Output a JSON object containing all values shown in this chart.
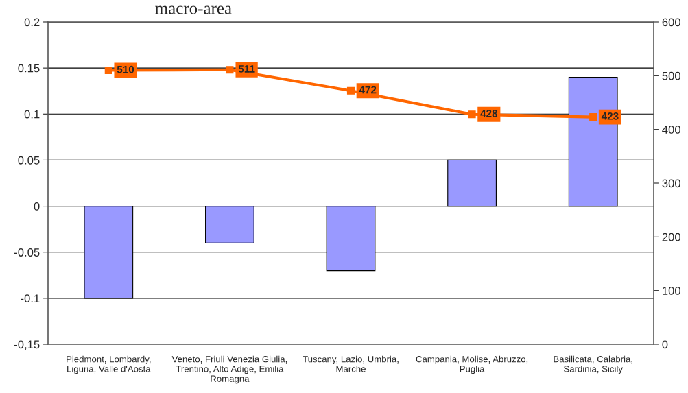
{
  "chart_data": {
    "type": "bar",
    "title": "macro-area",
    "categories": [
      "Piedmont, Lombardy,\nLiguria, Valle d'Aosta",
      "Veneto, Friuli Venezia Giulia,\nTrentino, Alto Adige, Emilia\nRomagna",
      "Tuscany, Lazio, Umbria,\nMarche",
      "Campania, Molise, Abruzzo,\nPuglia",
      "Basilicata, Calabria,\nSardinia, Sicily"
    ],
    "series": [
      {
        "color": "#9999ff",
        "values": [
          -0.1,
          -0.04,
          -0.07,
          0.05,
          0.14
        ]
      },
      {
        "type": "line",
        "axis": "y2",
        "color": "#ff6600",
        "marker": "square",
        "data_labels": true,
        "values": [
          510,
          511,
          472,
          428,
          423
        ]
      }
    ],
    "ylim": [
      -0.15,
      0.2
    ],
    "yticks": [
      {
        "value": -0.15,
        "label": "-0,15"
      },
      -0.1,
      -0.05,
      0,
      0.05,
      0.1,
      0.15,
      0.2
    ],
    "y2lim": [
      0,
      600
    ],
    "y2ticks": [
      0,
      100,
      200,
      300,
      400,
      500,
      600
    ],
    "grid": "y",
    "legend": false
  }
}
